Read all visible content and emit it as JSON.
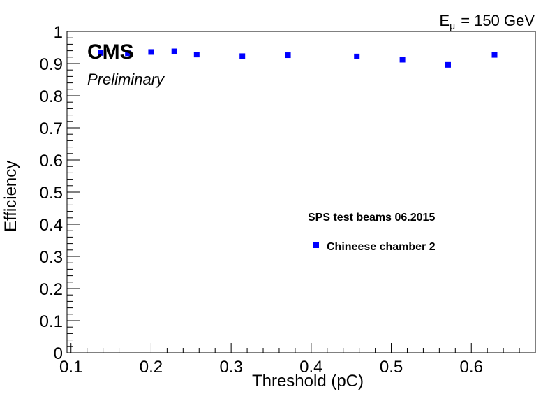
{
  "chart_data": {
    "type": "scatter",
    "title": "",
    "xlabel": "Threshold (pC)",
    "ylabel": "Efficiency",
    "xlim": [
      0.095,
      0.68
    ],
    "ylim": [
      0,
      1
    ],
    "x_ticks": [
      "0.1",
      "0.2",
      "0.3",
      "0.4",
      "0.5",
      "0.6"
    ],
    "y_ticks": [
      "0",
      "0.1",
      "0.2",
      "0.3",
      "0.4",
      "0.5",
      "0.6",
      "0.7",
      "0.8",
      "0.9",
      "1"
    ],
    "grid": false,
    "legend_position": "center-right",
    "series": [
      {
        "name": "Chineese chamber 2",
        "color": "#0000ff",
        "marker": "square",
        "x": [
          0.137,
          0.171,
          0.2,
          0.229,
          0.257,
          0.314,
          0.371,
          0.457,
          0.514,
          0.571,
          0.629
        ],
        "y": [
          0.933,
          0.932,
          0.936,
          0.938,
          0.928,
          0.923,
          0.926,
          0.922,
          0.912,
          0.896,
          0.927
        ]
      }
    ]
  },
  "annotations": {
    "experiment": "CMS",
    "status": "Preliminary",
    "legend_header": "SPS test beams 06.2015",
    "energy_symbol": "E",
    "energy_subscript": "μ",
    "energy_value": "= 150 GeV"
  }
}
